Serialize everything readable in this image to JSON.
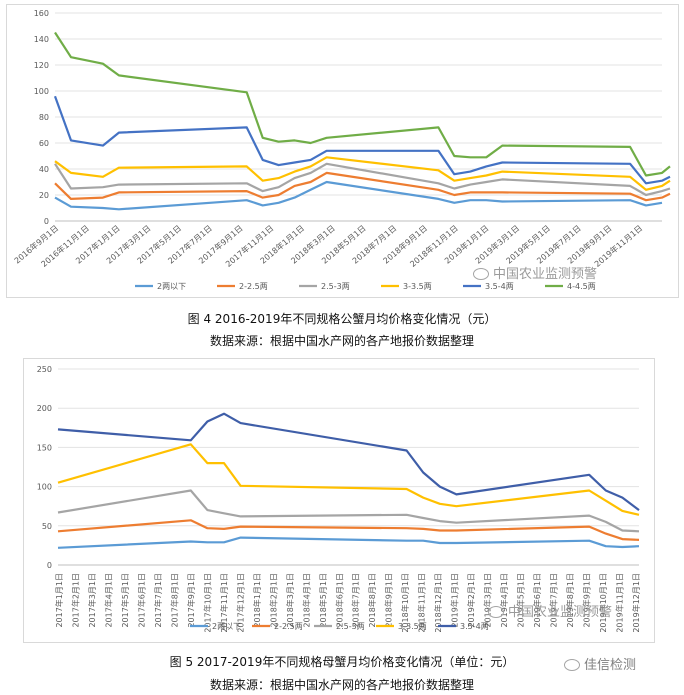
{
  "charts": [
    {
      "type": "line",
      "caption": "图 4 2016-2019年不同规格公蟹月均价格变化情况（元）",
      "source": "数据来源：根据中国水产网的各产地报价数据整理",
      "watermark": "中国农业监测预警",
      "ylim": [
        0,
        160
      ],
      "yticks": [
        0,
        20,
        40,
        60,
        80,
        100,
        120,
        140,
        160
      ],
      "categories": [
        "2016年9月1日",
        "2016年11月1日",
        "2017年1月1日",
        "2017年3月1日",
        "2017年5月1日",
        "2017年7月1日",
        "2017年9月1日",
        "2017年11月1日",
        "2018年1月1日",
        "2018年3月1日",
        "2018年5月1日",
        "2018年7月1日",
        "2018年9月1日",
        "2018年11月1日",
        "2019年1月1日",
        "2019年3月1日",
        "2019年5月1日",
        "2019年7月1日",
        "2019年9月1日",
        "2019年11月1日"
      ],
      "x_range": [
        0,
        38
      ],
      "series": [
        {
          "name": "2两以下",
          "color": "#5b9bd5",
          "points": [
            [
              0,
              18
            ],
            [
              1,
              11
            ],
            [
              3,
              10
            ],
            [
              4,
              9
            ],
            [
              12,
              16
            ],
            [
              13,
              12
            ],
            [
              14,
              14
            ],
            [
              15,
              18
            ],
            [
              16,
              24
            ],
            [
              17,
              30
            ],
            [
              24,
              17
            ],
            [
              25,
              14
            ],
            [
              26,
              16
            ],
            [
              27,
              16
            ],
            [
              28,
              15
            ],
            [
              36,
              16
            ],
            [
              37,
              12
            ],
            [
              38,
              14
            ]
          ]
        },
        {
          "name": "2-2.5两",
          "color": "#ed7d31",
          "points": [
            [
              0,
              29
            ],
            [
              1,
              17
            ],
            [
              3,
              18
            ],
            [
              4,
              22
            ],
            [
              12,
              23
            ],
            [
              13,
              18
            ],
            [
              14,
              20
            ],
            [
              15,
              27
            ],
            [
              16,
              30
            ],
            [
              17,
              37
            ],
            [
              24,
              24
            ],
            [
              25,
              20
            ],
            [
              26,
              22
            ],
            [
              27,
              22
            ],
            [
              28,
              22
            ],
            [
              36,
              21
            ],
            [
              37,
              16
            ],
            [
              38,
              18
            ],
            [
              38.5,
              21
            ]
          ]
        },
        {
          "name": "2.5-3两",
          "color": "#a5a5a5",
          "points": [
            [
              0,
              44
            ],
            [
              1,
              25
            ],
            [
              3,
              26
            ],
            [
              4,
              28
            ],
            [
              12,
              29
            ],
            [
              13,
              23
            ],
            [
              14,
              26
            ],
            [
              15,
              33
            ],
            [
              16,
              37
            ],
            [
              17,
              44
            ],
            [
              24,
              29
            ],
            [
              25,
              25
            ],
            [
              26,
              28
            ],
            [
              27,
              30
            ],
            [
              28,
              32
            ],
            [
              36,
              27
            ],
            [
              37,
              20
            ],
            [
              38,
              23
            ],
            [
              38.5,
              25
            ]
          ]
        },
        {
          "name": "3-3.5两",
          "color": "#ffc000",
          "points": [
            [
              0,
              46
            ],
            [
              1,
              37
            ],
            [
              3,
              34
            ],
            [
              4,
              41
            ],
            [
              12,
              42
            ],
            [
              13,
              31
            ],
            [
              14,
              33
            ],
            [
              15,
              38
            ],
            [
              16,
              42
            ],
            [
              17,
              49
            ],
            [
              24,
              39
            ],
            [
              25,
              31
            ],
            [
              26,
              33
            ],
            [
              27,
              35
            ],
            [
              28,
              38
            ],
            [
              36,
              34
            ],
            [
              37,
              24
            ],
            [
              38,
              27
            ],
            [
              38.5,
              31
            ]
          ]
        },
        {
          "name": "3.5-4两",
          "color": "#4472c4",
          "points": [
            [
              0,
              96
            ],
            [
              1,
              62
            ],
            [
              3,
              58
            ],
            [
              4,
              68
            ],
            [
              12,
              72
            ],
            [
              13,
              47
            ],
            [
              14,
              43
            ],
            [
              15,
              45
            ],
            [
              16,
              47
            ],
            [
              17,
              54
            ],
            [
              24,
              54
            ],
            [
              25,
              36
            ],
            [
              26,
              38
            ],
            [
              27,
              42
            ],
            [
              28,
              45
            ],
            [
              36,
              44
            ],
            [
              37,
              29
            ],
            [
              38,
              31
            ],
            [
              38.5,
              34
            ]
          ]
        },
        {
          "name": "4-4.5两",
          "color": "#70ad47",
          "points": [
            [
              0,
              145
            ],
            [
              1,
              126
            ],
            [
              3,
              121
            ],
            [
              4,
              112
            ],
            [
              12,
              99
            ],
            [
              13,
              64
            ],
            [
              14,
              61
            ],
            [
              15,
              62
            ],
            [
              16,
              60
            ],
            [
              17,
              64
            ],
            [
              24,
              72
            ],
            [
              25,
              50
            ],
            [
              26,
              49
            ],
            [
              27,
              49
            ],
            [
              28,
              58
            ],
            [
              36,
              57
            ],
            [
              37,
              35
            ],
            [
              38,
              37
            ],
            [
              38.5,
              42
            ]
          ]
        }
      ]
    },
    {
      "type": "line",
      "caption": "图 5 2017-2019年不同规格母蟹月均价格变化情况（单位：元）",
      "source": "数据来源：根据中国水产网的各产地报价数据整理",
      "watermark": "中国农业监测预警",
      "watermark2": "佳信检测",
      "ylim": [
        0,
        250
      ],
      "yticks": [
        0,
        50,
        100,
        150,
        200,
        250
      ],
      "categories": [
        "2017年1月1日",
        "2017年2月1日",
        "2017年3月1日",
        "2017年4月1日",
        "2017年5月1日",
        "2017年6月1日",
        "2017年7月1日",
        "2017年8月1日",
        "2017年9月1日",
        "2017年10月1日",
        "2017年11月1日",
        "2017年12月1日",
        "2018年1月1日",
        "2018年2月1日",
        "2018年3月1日",
        "2018年4月1日",
        "2018年5月1日",
        "2018年6月1日",
        "2018年7月1日",
        "2018年8月1日",
        "2018年9月1日",
        "2018年10月1日",
        "2018年11月1日",
        "2018年12月1日",
        "2019年1月1日",
        "2019年2月1日",
        "2019年3月1日",
        "2019年4月1日",
        "2019年5月1日",
        "2019年6月1日",
        "2019年7月1日",
        "2019年8月1日",
        "2019年9月1日",
        "2019年10月1日",
        "2019年11月1日",
        "2019年12月1日"
      ],
      "x_range": [
        0,
        35
      ],
      "series": [
        {
          "name": "2两以下",
          "color": "#5b9bd5",
          "points": [
            [
              0,
              22
            ],
            [
              8,
              30
            ],
            [
              9,
              29
            ],
            [
              10,
              29
            ],
            [
              11,
              35
            ],
            [
              21,
              31
            ],
            [
              22,
              31
            ],
            [
              23,
              28
            ],
            [
              24,
              28
            ],
            [
              32,
              31
            ],
            [
              33,
              24
            ],
            [
              34,
              23
            ],
            [
              35,
              24
            ]
          ]
        },
        {
          "name": "2-2.5两",
          "color": "#ed7d31",
          "points": [
            [
              0,
              43
            ],
            [
              8,
              57
            ],
            [
              9,
              47
            ],
            [
              10,
              46
            ],
            [
              11,
              49
            ],
            [
              21,
              47
            ],
            [
              22,
              46
            ],
            [
              23,
              44
            ],
            [
              24,
              44
            ],
            [
              32,
              49
            ],
            [
              33,
              40
            ],
            [
              34,
              33
            ],
            [
              35,
              32
            ]
          ]
        },
        {
          "name": "2.5-3两",
          "color": "#a5a5a5",
          "points": [
            [
              0,
              67
            ],
            [
              8,
              95
            ],
            [
              9,
              70
            ],
            [
              10,
              66
            ],
            [
              11,
              62
            ],
            [
              21,
              64
            ],
            [
              22,
              60
            ],
            [
              23,
              56
            ],
            [
              24,
              54
            ],
            [
              32,
              63
            ],
            [
              33,
              55
            ],
            [
              34,
              44
            ],
            [
              35,
              43
            ]
          ]
        },
        {
          "name": "3-3.5两",
          "color": "#ffc000",
          "points": [
            [
              0,
              105
            ],
            [
              8,
              154
            ],
            [
              9,
              130
            ],
            [
              10,
              130
            ],
            [
              11,
              101
            ],
            [
              21,
              97
            ],
            [
              22,
              86
            ],
            [
              23,
              78
            ],
            [
              24,
              75
            ],
            [
              32,
              95
            ],
            [
              33,
              82
            ],
            [
              34,
              69
            ],
            [
              35,
              64
            ]
          ]
        },
        {
          "name": "3.5-4两",
          "color": "#3f5ea8",
          "points": [
            [
              0,
              173
            ],
            [
              8,
              159
            ],
            [
              9,
              183
            ],
            [
              10,
              193
            ],
            [
              11,
              181
            ],
            [
              21,
              146
            ],
            [
              22,
              118
            ],
            [
              23,
              100
            ],
            [
              24,
              90
            ],
            [
              32,
              115
            ],
            [
              33,
              95
            ],
            [
              34,
              86
            ],
            [
              35,
              70
            ]
          ]
        }
      ]
    }
  ]
}
